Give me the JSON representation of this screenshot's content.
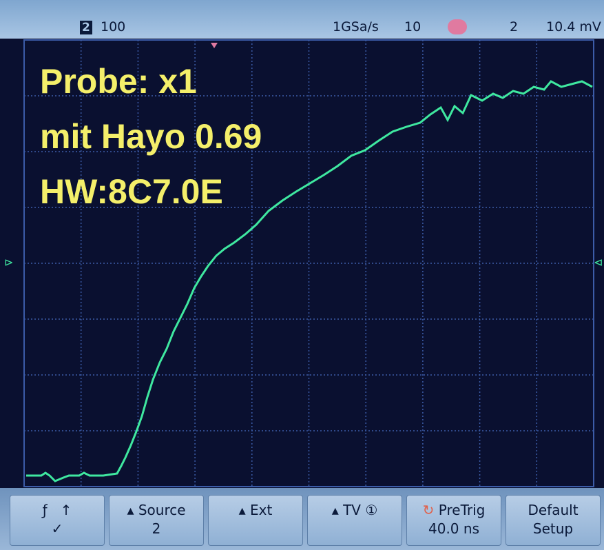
{
  "status_bar": {
    "channel": "2",
    "volts_per_div": "100",
    "sample_rate": "1GSa/s",
    "time_per_div": "10",
    "trigger_source": "2",
    "trigger_level": "10.4 mV"
  },
  "overlay": {
    "line1": "Probe: x1",
    "line2": "mit Hayo 0.69",
    "line3": "HW:8C7.0E"
  },
  "softkeys": {
    "mode": "✓",
    "source_label": "Source",
    "source_value": "2",
    "ext": "Ext",
    "tv": "TV",
    "pretrig_label": "PreTrig",
    "pretrig_value": "40.0 ns",
    "default_line1": "Default",
    "default_line2": "Setup"
  }
}
